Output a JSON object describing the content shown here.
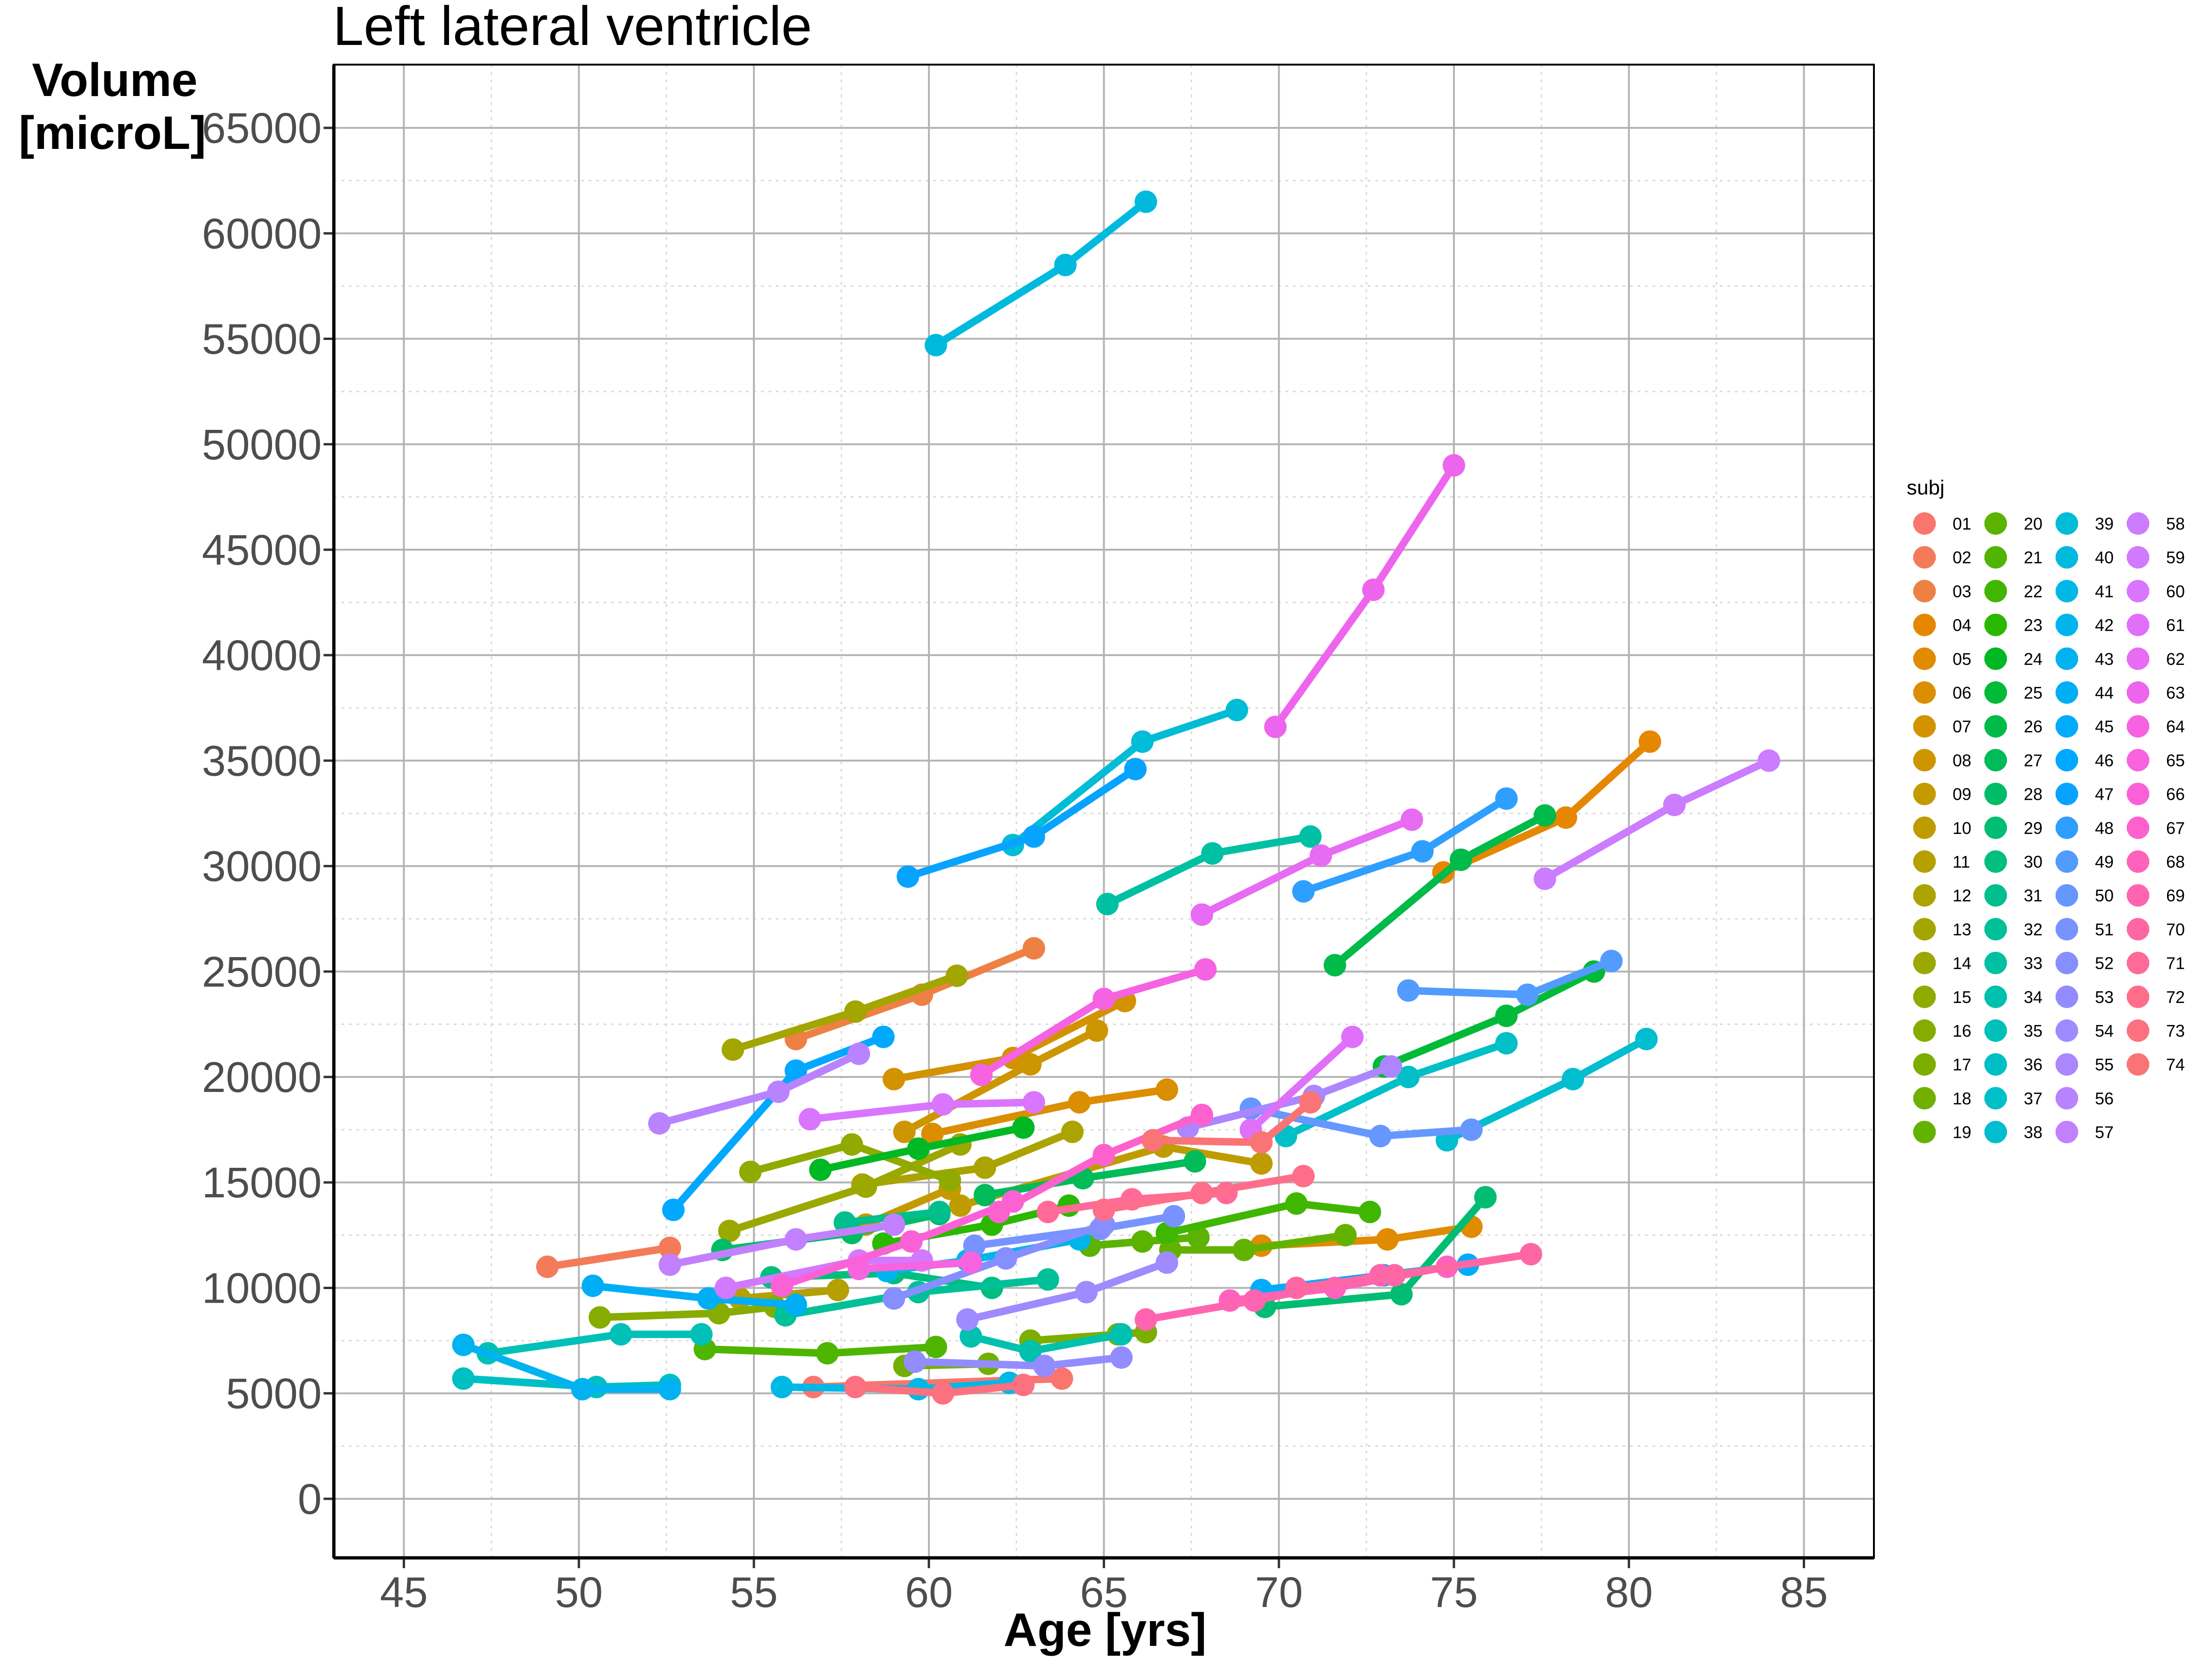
{
  "chart_data": {
    "type": "line",
    "title": "Left lateral ventricle",
    "xlabel": "Age [yrs]",
    "ylabel": [
      "Volume",
      "[microL]"
    ],
    "xlim": [
      43,
      87
    ],
    "ylim": [
      -2800,
      68000
    ],
    "x_ticks": [
      45,
      50,
      55,
      60,
      65,
      70,
      75,
      80,
      85
    ],
    "y_ticks": [
      0,
      5000,
      10000,
      15000,
      20000,
      25000,
      30000,
      35000,
      40000,
      45000,
      50000,
      55000,
      60000,
      65000
    ],
    "grid": true,
    "legend_title": "subj",
    "legend_position": "right",
    "series": [
      {
        "name": "01",
        "color": "#F8766D",
        "x": [
          56.7,
          63.8
        ],
        "y": [
          5300,
          5700
        ]
      },
      {
        "name": "02",
        "color": "#F37B59",
        "x": [
          49.1,
          52.6
        ],
        "y": [
          11000,
          11900
        ]
      },
      {
        "name": "03",
        "color": "#EE8044",
        "x": [
          56.2,
          59.8,
          63.0
        ],
        "y": [
          21800,
          23900,
          26100
        ]
      },
      {
        "name": "04",
        "color": "#E58700",
        "x": [
          74.7,
          78.2,
          80.6
        ],
        "y": [
          29700,
          32300,
          35900
        ]
      },
      {
        "name": "05",
        "color": "#E08B00",
        "x": [
          69.5,
          73.1,
          75.5
        ],
        "y": [
          12000,
          12300,
          12900
        ]
      },
      {
        "name": "06",
        "color": "#DB8E00",
        "x": [
          60.1,
          64.3,
          66.8
        ],
        "y": [
          17300,
          18800,
          19400
        ]
      },
      {
        "name": "07",
        "color": "#D39200",
        "x": [
          59.0,
          62.4,
          65.6
        ],
        "y": [
          19900,
          20900,
          23600
        ]
      },
      {
        "name": "08",
        "color": "#CD9600",
        "x": [
          59.3,
          62.9,
          64.8
        ],
        "y": [
          17400,
          20600,
          22200
        ]
      },
      {
        "name": "09",
        "color": "#C49A00",
        "x": [
          58.2,
          60.6
        ],
        "y": [
          13000,
          14700
        ]
      },
      {
        "name": "10",
        "color": "#BE9C00",
        "x": [
          60.9,
          66.7,
          69.5
        ],
        "y": [
          13900,
          16700,
          15900
        ]
      },
      {
        "name": "11",
        "color": "#B5A000",
        "x": [
          54.6,
          57.4
        ],
        "y": [
          9500,
          9900
        ]
      },
      {
        "name": "12",
        "color": "#ABA300",
        "x": [
          58.1,
          61.6,
          64.1
        ],
        "y": [
          14900,
          15700,
          17400
        ]
      },
      {
        "name": "13",
        "color": "#A3A500",
        "x": [
          54.4,
          57.9,
          60.8
        ],
        "y": [
          21300,
          23100,
          24800
        ]
      },
      {
        "name": "14",
        "color": "#9BA800",
        "x": [
          54.3,
          58.2,
          60.9
        ],
        "y": [
          12700,
          14800,
          16800
        ]
      },
      {
        "name": "15",
        "color": "#90AA00",
        "x": [
          54.9,
          57.8,
          60.6
        ],
        "y": [
          15500,
          16800,
          15100
        ]
      },
      {
        "name": "16",
        "color": "#86AC00",
        "x": [
          50.6,
          54.0,
          55.6
        ],
        "y": [
          8600,
          8800,
          9100
        ]
      },
      {
        "name": "17",
        "color": "#7CAE00",
        "x": [
          62.9,
          65.4,
          66.2
        ],
        "y": [
          7500,
          7800,
          7900
        ]
      },
      {
        "name": "18",
        "color": "#71B000",
        "x": [
          59.3,
          61.7
        ],
        "y": [
          6300,
          6400
        ]
      },
      {
        "name": "19",
        "color": "#64B200",
        "x": [
          66.9,
          69.0,
          71.9
        ],
        "y": [
          11800,
          11800,
          12500
        ]
      },
      {
        "name": "20",
        "color": "#5BB300",
        "x": [
          64.6,
          66.1,
          67.7
        ],
        "y": [
          12000,
          12200,
          12400
        ]
      },
      {
        "name": "21",
        "color": "#4FB500",
        "x": [
          53.6,
          57.1,
          60.2
        ],
        "y": [
          7100,
          6900,
          7200
        ]
      },
      {
        "name": "22",
        "color": "#3FB600",
        "x": [
          66.8,
          70.5,
          72.6
        ],
        "y": [
          12600,
          14000,
          13600
        ]
      },
      {
        "name": "23",
        "color": "#2BB800",
        "x": [
          58.7,
          61.8,
          64.0
        ],
        "y": [
          12100,
          13000,
          13900
        ]
      },
      {
        "name": "24",
        "color": "#00B823",
        "x": [
          56.9,
          59.7,
          62.7
        ],
        "y": [
          15600,
          16600,
          17600
        ]
      },
      {
        "name": "25",
        "color": "#00BA38",
        "x": [
          73.0,
          76.5,
          79.0
        ],
        "y": [
          20500,
          22900,
          25000
        ]
      },
      {
        "name": "26",
        "color": "#00BA49",
        "x": [
          71.6,
          75.2,
          77.6
        ],
        "y": [
          25300,
          30300,
          32400
        ]
      },
      {
        "name": "27",
        "color": "#00BB58",
        "x": [
          61.6,
          64.4,
          67.6
        ],
        "y": [
          14400,
          15200,
          16000
        ]
      },
      {
        "name": "28",
        "color": "#00BC66",
        "x": [
          54.1,
          57.8,
          60.3
        ],
        "y": [
          11800,
          12600,
          13500
        ]
      },
      {
        "name": "29",
        "color": "#00BD73",
        "x": [
          69.6,
          73.5,
          75.9
        ],
        "y": [
          9100,
          9700,
          14300
        ]
      },
      {
        "name": "30",
        "color": "#00BE80",
        "x": [
          55.5,
          59.0,
          61.8
        ],
        "y": [
          10500,
          10700,
          10000
        ]
      },
      {
        "name": "31",
        "color": "#00BF8C",
        "x": [
          57.6,
          60.3
        ],
        "y": [
          13100,
          13600
        ]
      },
      {
        "name": "32",
        "color": "#00C098",
        "x": [
          55.9,
          59.7,
          63.4
        ],
        "y": [
          8700,
          9800,
          10400
        ]
      },
      {
        "name": "33",
        "color": "#00C0A3",
        "x": [
          65.1,
          68.1,
          70.9
        ],
        "y": [
          28200,
          30600,
          31400
        ]
      },
      {
        "name": "34",
        "color": "#00C0AE",
        "x": [
          61.2,
          62.9,
          65.5
        ],
        "y": [
          7700,
          7000,
          7800
        ]
      },
      {
        "name": "35",
        "color": "#00C0B8",
        "x": [
          47.4,
          51.2,
          53.5
        ],
        "y": [
          6900,
          7800,
          7800
        ]
      },
      {
        "name": "36",
        "color": "#00BFC4",
        "x": [
          46.7,
          50.5,
          52.6
        ],
        "y": [
          5700,
          5300,
          5400
        ]
      },
      {
        "name": "37",
        "color": "#00BFC7",
        "x": [
          70.2,
          73.7,
          76.5
        ],
        "y": [
          17200,
          20000,
          21600
        ]
      },
      {
        "name": "38",
        "color": "#00BDCF",
        "x": [
          74.8,
          78.4,
          80.5
        ],
        "y": [
          17000,
          19900,
          21800
        ]
      },
      {
        "name": "39",
        "color": "#00BCD6",
        "x": [
          62.4,
          66.1,
          68.8
        ],
        "y": [
          31000,
          35900,
          37400
        ]
      },
      {
        "name": "40",
        "color": "#00BADE",
        "x": [
          60.2,
          63.9,
          66.2
        ],
        "y": [
          54700,
          58500,
          61500
        ]
      },
      {
        "name": "41",
        "color": "#00B8E5",
        "x": [
          55.8,
          59.7,
          62.3
        ],
        "y": [
          5300,
          5200,
          5500
        ]
      },
      {
        "name": "42",
        "color": "#00B5EB",
        "x": [
          58.8,
          61.1,
          64.3
        ],
        "y": [
          10800,
          11300,
          12300
        ]
      },
      {
        "name": "43",
        "color": "#00B2F0",
        "x": [
          46.7,
          50.1,
          52.6
        ],
        "y": [
          7300,
          5200,
          5200
        ]
      },
      {
        "name": "44",
        "color": "#00AEF5",
        "x": [
          50.4,
          53.7,
          56.2
        ],
        "y": [
          10100,
          9500,
          9200
        ]
      },
      {
        "name": "45",
        "color": "#00ABFA",
        "x": [
          69.5,
          73.0,
          75.4
        ],
        "y": [
          9900,
          10600,
          11100
        ]
      },
      {
        "name": "46",
        "color": "#00A8FF",
        "x": [
          52.7,
          56.2,
          58.7
        ],
        "y": [
          13700,
          20300,
          21900
        ]
      },
      {
        "name": "47",
        "color": "#07A3FF",
        "x": [
          59.4,
          63.0,
          65.9
        ],
        "y": [
          29500,
          31400,
          34600
        ]
      },
      {
        "name": "48",
        "color": "#2E9FFF",
        "x": [
          70.7,
          74.1,
          76.5
        ],
        "y": [
          28800,
          30700,
          33200
        ]
      },
      {
        "name": "49",
        "color": "#529BFF",
        "x": [
          73.7,
          77.1,
          79.5
        ],
        "y": [
          24100,
          23900,
          25500
        ]
      },
      {
        "name": "50",
        "color": "#6597FF",
        "x": [
          69.2,
          72.9,
          75.5
        ],
        "y": [
          18500,
          17200,
          17500
        ]
      },
      {
        "name": "51",
        "color": "#7893FF",
        "x": [
          61.3,
          64.9,
          67.0
        ],
        "y": [
          12000,
          12800,
          13400
        ]
      },
      {
        "name": "52",
        "color": "#858FFF",
        "x": [
          59.0,
          62.2,
          65.0
        ],
        "y": [
          9500,
          11400,
          13000
        ]
      },
      {
        "name": "53",
        "color": "#938CFF",
        "x": [
          59.6,
          63.3,
          65.5
        ],
        "y": [
          6500,
          6300,
          6700
        ]
      },
      {
        "name": "54",
        "color": "#9F8AFF",
        "x": [
          61.1,
          64.5,
          66.8
        ],
        "y": [
          8500,
          9800,
          11200
        ]
      },
      {
        "name": "55",
        "color": "#AB86FF",
        "x": [
          67.4,
          71.0,
          73.2
        ],
        "y": [
          17600,
          19100,
          20500
        ]
      },
      {
        "name": "56",
        "color": "#B983FF",
        "x": [
          52.3,
          55.7,
          58.0
        ],
        "y": [
          17800,
          19300,
          21100
        ]
      },
      {
        "name": "57",
        "color": "#C280FF",
        "x": [
          52.6,
          56.2,
          59.0
        ],
        "y": [
          11100,
          12300,
          13000
        ]
      },
      {
        "name": "58",
        "color": "#CB7CFF",
        "x": [
          77.6,
          81.3,
          84.0
        ],
        "y": [
          29400,
          32900,
          35000
        ]
      },
      {
        "name": "59",
        "color": "#D27AFF",
        "x": [
          54.2,
          58.0,
          59.8
        ],
        "y": [
          10000,
          11300,
          11300
        ]
      },
      {
        "name": "60",
        "color": "#D975FF",
        "x": [
          56.6,
          60.4,
          63.0
        ],
        "y": [
          18000,
          18700,
          18800
        ]
      },
      {
        "name": "61",
        "color": "#E070F9",
        "x": [
          69.2,
          72.1
        ],
        "y": [
          17500,
          21900
        ]
      },
      {
        "name": "62",
        "color": "#E76BF3",
        "x": [
          67.8,
          71.2,
          73.8
        ],
        "y": [
          27700,
          30500,
          32200
        ]
      },
      {
        "name": "63",
        "color": "#EE65ED",
        "x": [
          69.9,
          72.7,
          75.0
        ],
        "y": [
          36600,
          43100,
          49000
        ]
      },
      {
        "name": "64",
        "color": "#F563E3",
        "x": [
          61.5,
          65.0,
          67.9
        ],
        "y": [
          20100,
          23700,
          25100
        ]
      },
      {
        "name": "65",
        "color": "#F863DF",
        "x": [
          58.0,
          61.2
        ],
        "y": [
          10900,
          11200
        ]
      },
      {
        "name": "66",
        "color": "#FB61D7",
        "x": [
          55.8,
          59.5,
          62.4
        ],
        "y": [
          10100,
          12200,
          14100
        ]
      },
      {
        "name": "67",
        "color": "#FD61CE",
        "x": [
          62.0,
          65.0,
          67.8
        ],
        "y": [
          13600,
          16300,
          18200
        ]
      },
      {
        "name": "68",
        "color": "#FF62BC",
        "x": [
          68.6,
          71.6,
          74.8
        ],
        "y": [
          9400,
          10000,
          11000
        ]
      },
      {
        "name": "69",
        "color": "#FF64B0",
        "x": [
          66.2,
          69.3,
          72.9
        ],
        "y": [
          8500,
          9400,
          10600
        ]
      },
      {
        "name": "70",
        "color": "#FF67A4",
        "x": [
          70.5,
          73.3,
          77.2
        ],
        "y": [
          10000,
          10600,
          11600
        ]
      },
      {
        "name": "71",
        "color": "#FF6A98",
        "x": [
          63.4,
          65.8,
          68.5
        ],
        "y": [
          13600,
          14200,
          14500
        ]
      },
      {
        "name": "72",
        "color": "#FE6E8A",
        "x": [
          65.0,
          67.8,
          70.7
        ],
        "y": [
          13700,
          14500,
          15300
        ]
      },
      {
        "name": "73",
        "color": "#FC717F",
        "x": [
          57.9,
          60.4,
          62.7
        ],
        "y": [
          5300,
          5000,
          5400
        ]
      },
      {
        "name": "74",
        "color": "#FA7476",
        "x": [
          66.4,
          69.5,
          70.9
        ],
        "y": [
          17000,
          16900,
          18800
        ]
      }
    ]
  }
}
